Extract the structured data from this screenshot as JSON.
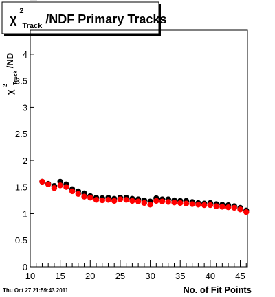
{
  "chart_data": {
    "type": "scatter",
    "title": {
      "chi": "χ",
      "sup": "2",
      "sub": "Track",
      "rest": "/NDF Primary Tracks"
    },
    "xlabel": "No. of Fit Points",
    "ylabel": {
      "chi": "χ",
      "sup": "2",
      "sub": "Track",
      "rest": "/ND"
    },
    "xlim": [
      10,
      46.2
    ],
    "ylim": [
      0,
      4.45
    ],
    "x_ticks_major": [
      10,
      15,
      20,
      25,
      30,
      35,
      40,
      45
    ],
    "x_tick_labels": [
      "10",
      "15",
      "20",
      "25",
      "30",
      "35",
      "40",
      "45"
    ],
    "y_ticks_major": [
      0,
      0.5,
      1,
      1.5,
      2,
      2.5,
      3,
      3.5,
      4
    ],
    "y_tick_labels": [
      "0",
      "0.5",
      "1",
      "1.5",
      "2",
      "2.5",
      "3",
      "3.5",
      "4"
    ],
    "grid": false,
    "legend": "none",
    "series": [
      {
        "color": "#000000",
        "x": [
          12,
          13,
          14,
          15,
          16,
          17,
          18,
          19,
          20,
          21,
          22,
          23,
          24,
          25,
          26,
          27,
          28,
          29,
          30,
          31,
          32,
          33,
          34,
          35,
          36,
          37,
          38,
          39,
          40,
          41,
          42,
          43,
          44,
          45,
          46
        ],
        "y": [
          1.6,
          1.56,
          1.52,
          1.6,
          1.55,
          1.46,
          1.42,
          1.38,
          1.33,
          1.3,
          1.29,
          1.3,
          1.28,
          1.3,
          1.3,
          1.28,
          1.27,
          1.25,
          1.23,
          1.29,
          1.27,
          1.27,
          1.25,
          1.24,
          1.24,
          1.22,
          1.2,
          1.19,
          1.2,
          1.18,
          1.17,
          1.16,
          1.14,
          1.11,
          1.06
        ]
      },
      {
        "color": "#ff0000",
        "x": [
          12,
          13,
          14,
          15,
          16,
          17,
          18,
          19,
          20,
          21,
          22,
          23,
          24,
          25,
          26,
          27,
          28,
          29,
          30,
          31,
          32,
          33,
          34,
          35,
          36,
          37,
          38,
          39,
          40,
          41,
          42,
          43,
          44,
          45,
          46
        ],
        "y": [
          1.6,
          1.55,
          1.48,
          1.53,
          1.5,
          1.42,
          1.37,
          1.32,
          1.3,
          1.26,
          1.25,
          1.26,
          1.24,
          1.27,
          1.26,
          1.24,
          1.23,
          1.2,
          1.17,
          1.24,
          1.23,
          1.22,
          1.21,
          1.2,
          1.19,
          1.18,
          1.17,
          1.16,
          1.16,
          1.14,
          1.13,
          1.12,
          1.11,
          1.08,
          1.03
        ]
      }
    ]
  },
  "footer_timestamp": "Thu Oct 27 21:59:43 2011"
}
